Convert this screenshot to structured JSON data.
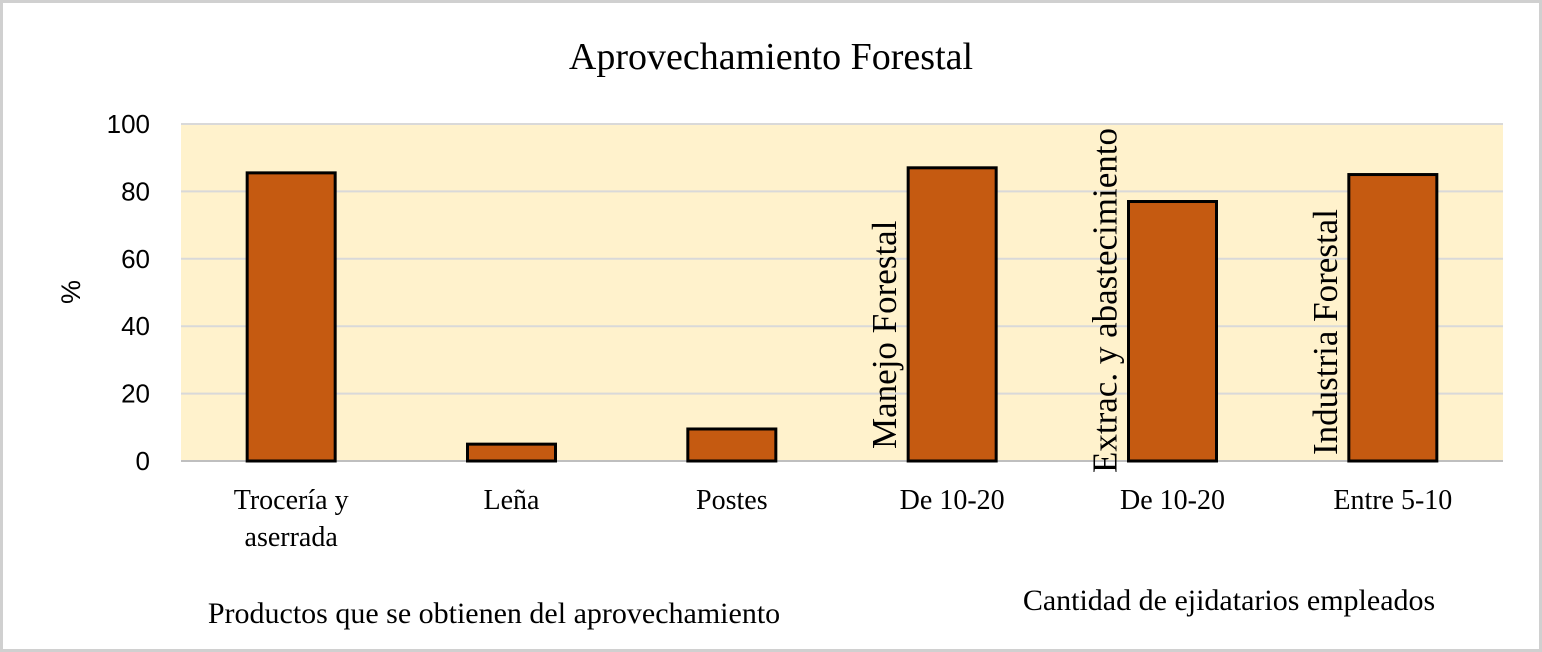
{
  "chart_data": {
    "type": "bar",
    "title": "Aprovechamiento Forestal",
    "ylabel": "%",
    "ylim": [
      0,
      100
    ],
    "yticks": [
      0,
      20,
      40,
      60,
      80,
      100
    ],
    "grid": true,
    "categories": [
      "Trocería y aserrada",
      "Leña",
      "Postes",
      "De 10-20",
      "De 10-20",
      "Entre 5-10"
    ],
    "values": [
      85.5,
      5,
      9.5,
      87,
      77,
      85
    ],
    "bar_annotations": [
      "",
      "",
      "",
      "Manejo Forestal",
      "Extrac. y abastecimiento",
      "Industria Forestal"
    ],
    "group_labels": [
      "Productos que se obtienen del aprovechamiento",
      "Cantidad de ejidatarios empleados"
    ],
    "colors": {
      "bar": "#c55a11",
      "bar_edge": "#000000",
      "plot_bg": "#fff2cc",
      "grid": "#d9d9d9"
    }
  }
}
